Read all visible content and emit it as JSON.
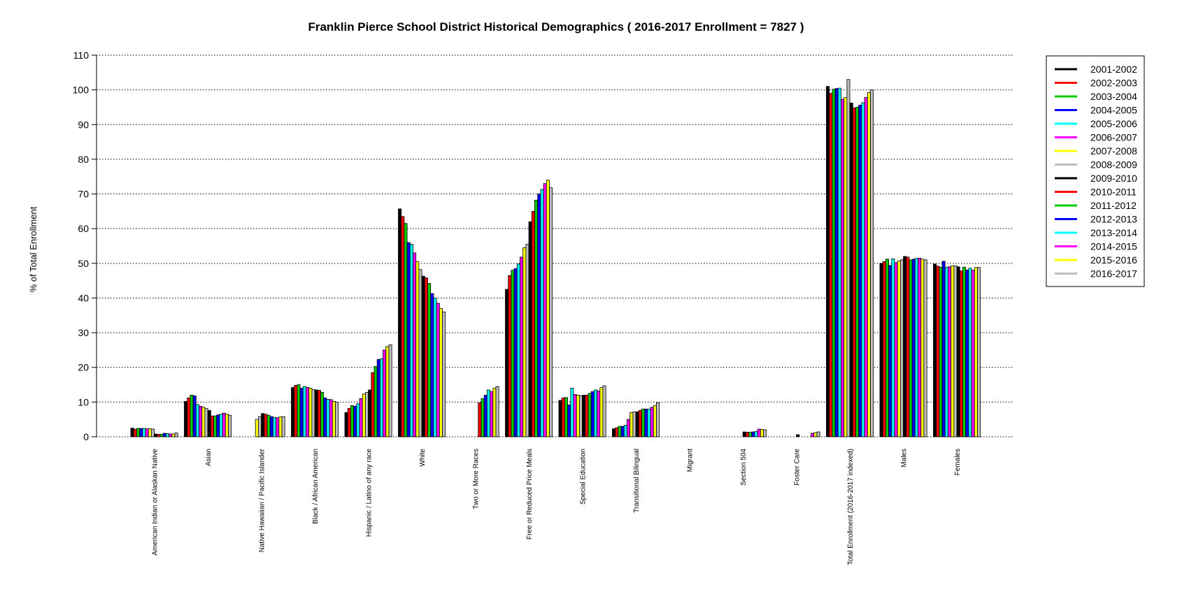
{
  "chart_data": {
    "type": "bar",
    "title": "Franklin Pierce School District Historical Demographics  ( 2016-2017 Enrollment =  7827 )",
    "ylabel": "% of Total Enrollment",
    "xlabel": "",
    "ylim": [
      0,
      110
    ],
    "yticks": [
      0,
      10,
      20,
      30,
      40,
      50,
      60,
      70,
      80,
      90,
      100,
      110
    ],
    "grid": "horizontal dotted",
    "legend_position": "top-right",
    "categories": [
      "American Indian or Alaskan Native",
      "Asian",
      "Native Hawaiian / Pacific Islander",
      "Black / African American",
      "Hispanic / Latino of any race",
      "White",
      "Two or More Races",
      "Free or Reduced Price Meals",
      "Special Education",
      "Transitional Bilingual",
      "Migrant",
      "Section 504",
      "Foster Care",
      "Total Enrollment (2016-2017 indexed)",
      "Males",
      "Females"
    ],
    "series": [
      {
        "name": "2001-2002",
        "color": "#000000",
        "values": [
          2.5,
          10.2,
          0,
          14.2,
          7.0,
          65.7,
          0,
          42.5,
          10.5,
          2.3,
          0,
          0,
          0,
          101.0,
          50.0,
          49.8
        ]
      },
      {
        "name": "2002-2003",
        "color": "#ff0000",
        "values": [
          2.2,
          11.2,
          0,
          14.8,
          8.2,
          63.5,
          0,
          46.5,
          11.2,
          2.6,
          0,
          0,
          0,
          99.0,
          50.5,
          49.2
        ]
      },
      {
        "name": "2003-2004",
        "color": "#00cc00",
        "values": [
          2.4,
          12.0,
          0,
          15.0,
          9.0,
          61.5,
          0,
          48.0,
          11.3,
          3.0,
          0,
          0,
          0,
          100.2,
          51.2,
          48.9
        ]
      },
      {
        "name": "2004-2005",
        "color": "#0000ff",
        "values": [
          2.4,
          11.8,
          0,
          14.0,
          8.8,
          56.0,
          0,
          48.5,
          9.2,
          3.0,
          0,
          0,
          0,
          100.4,
          49.4,
          50.6
        ]
      },
      {
        "name": "2005-2006",
        "color": "#00ffff",
        "values": [
          2.4,
          9.3,
          0,
          14.5,
          9.5,
          55.5,
          0,
          49.8,
          14.0,
          3.3,
          0,
          0,
          0,
          100.5,
          51.3,
          48.8
        ]
      },
      {
        "name": "2006-2007",
        "color": "#ff00ff",
        "values": [
          2.3,
          8.8,
          0,
          14.2,
          11.0,
          53.0,
          0,
          51.8,
          12.2,
          5.0,
          0,
          0,
          0,
          97.3,
          50.2,
          49.0
        ]
      },
      {
        "name": "2007-2008",
        "color": "#ffff00",
        "values": [
          2.3,
          8.5,
          5.0,
          14.0,
          12.3,
          50.5,
          0,
          54.5,
          12.0,
          7.0,
          0,
          0,
          0,
          97.8,
          50.7,
          49.3
        ]
      },
      {
        "name": "2008-2009",
        "color": "#bebebe",
        "values": [
          2.2,
          8.2,
          5.8,
          13.6,
          12.8,
          48.2,
          0,
          55.5,
          11.8,
          7.2,
          0,
          0,
          0,
          103.0,
          51.0,
          49.3
        ]
      },
      {
        "name": "2009-2010",
        "color": "#000000",
        "values": [
          0.8,
          7.6,
          6.7,
          13.5,
          13.5,
          46.3,
          0,
          62.0,
          12.0,
          7.2,
          0,
          1.4,
          0.6,
          96.2,
          52.0,
          49.0
        ]
      },
      {
        "name": "2010-2011",
        "color": "#ff0000",
        "values": [
          0.7,
          6.0,
          6.5,
          13.4,
          18.5,
          45.8,
          9.8,
          65.0,
          12.0,
          7.6,
          0,
          1.3,
          0,
          94.8,
          51.8,
          47.8
        ]
      },
      {
        "name": "2011-2012",
        "color": "#00cc00",
        "values": [
          0.7,
          6.0,
          6.2,
          12.8,
          20.3,
          44.2,
          11.0,
          68.2,
          12.5,
          8.0,
          0,
          1.3,
          0,
          95.0,
          51.0,
          48.9
        ]
      },
      {
        "name": "2012-2013",
        "color": "#0000ff",
        "values": [
          1.0,
          6.3,
          5.8,
          11.2,
          22.3,
          41.3,
          12.0,
          70.0,
          13.0,
          8.0,
          0,
          1.4,
          0,
          95.6,
          51.2,
          48.1
        ]
      },
      {
        "name": "2013-2014",
        "color": "#00ffff",
        "values": [
          0.9,
          6.5,
          5.6,
          10.8,
          22.5,
          40.0,
          13.5,
          71.3,
          13.5,
          8.0,
          0,
          1.5,
          0,
          96.3,
          51.4,
          48.6
        ]
      },
      {
        "name": "2014-2015",
        "color": "#ff00ff",
        "values": [
          0.8,
          6.8,
          5.5,
          10.7,
          25.0,
          38.5,
          13.0,
          73.0,
          13.2,
          8.5,
          0,
          2.2,
          1.0,
          97.8,
          51.5,
          48.0
        ]
      },
      {
        "name": "2015-2016",
        "color": "#ffff00",
        "values": [
          0.8,
          6.5,
          5.7,
          10.2,
          26.0,
          37.0,
          14.0,
          74.0,
          14.2,
          9.0,
          0,
          2.1,
          1.2,
          99.2,
          51.2,
          48.8
        ]
      },
      {
        "name": "2016-2017",
        "color": "#bebebe",
        "values": [
          1.1,
          6.2,
          5.8,
          10.0,
          26.5,
          36.0,
          14.5,
          71.8,
          14.7,
          9.8,
          0,
          2.0,
          1.4,
          100.0,
          51.0,
          48.8
        ]
      }
    ]
  }
}
